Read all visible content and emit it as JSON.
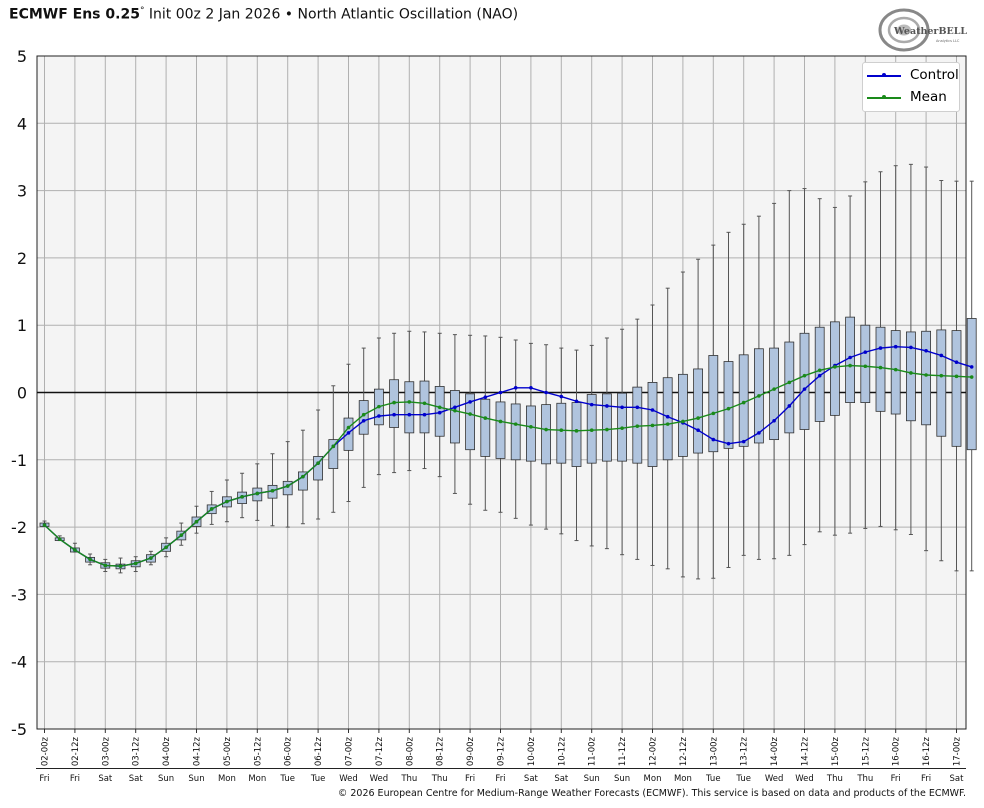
{
  "header": {
    "model": "ECMWF Ens 0.25",
    "degree": "°",
    "init": " Init 00z 2 Jan 2026",
    "bullet": " • ",
    "product": "North Atlantic Oscillation (NAO)"
  },
  "logo": {
    "text": "WeatherBELL",
    "sub": "Analytics LLC"
  },
  "copyright": "© 2026 European Centre for Medium-Range Weather Forecasts (ECMWF). This service is based on data and products of the ECMWF.",
  "colors": {
    "control": "#0000cc",
    "mean": "#1a8a1a",
    "box": "#b0c4de",
    "grid": "#b0b0b0",
    "plot_bg": "#f4f4f4"
  },
  "chart_data": {
    "type": "box",
    "title": "",
    "ylim": [
      -5,
      5
    ],
    "yticks": [
      5,
      4,
      3,
      2,
      1,
      0,
      -1,
      -2,
      -3,
      -4,
      -5
    ],
    "grid": true,
    "legend_position": "top-right",
    "x_tick_labels": [
      "02-00z",
      "02-12z",
      "03-00z",
      "03-12z",
      "04-00z",
      "04-12z",
      "05-00z",
      "05-12z",
      "06-00z",
      "06-12z",
      "07-00z",
      "07-12z",
      "08-00z",
      "08-12z",
      "09-00z",
      "09-12z",
      "10-00z",
      "10-12z",
      "11-00z",
      "11-12z",
      "12-00z",
      "12-12z",
      "13-00z",
      "13-12z",
      "14-00z",
      "14-12z",
      "15-00z",
      "15-12z",
      "16-00z",
      "16-12z",
      "17-00z"
    ],
    "x_day_labels": [
      "Fri",
      "Fri",
      "Sat",
      "Sat",
      "Sun",
      "Sun",
      "Mon",
      "Mon",
      "Tue",
      "Tue",
      "Wed",
      "Wed",
      "Thu",
      "Thu",
      "Fri",
      "Fri",
      "Sat",
      "Sat",
      "Sun",
      "Sun",
      "Mon",
      "Mon",
      "Tue",
      "Tue",
      "Wed",
      "Wed",
      "Thu",
      "Thu",
      "Fri",
      "Fri",
      "Sat"
    ],
    "step_hours": 6,
    "series": [
      {
        "name": "Control",
        "values": [
          -1.97,
          -2.18,
          -2.34,
          -2.48,
          -2.57,
          -2.58,
          -2.54,
          -2.46,
          -2.3,
          -2.12,
          -1.92,
          -1.73,
          -1.62,
          -1.55,
          -1.5,
          -1.46,
          -1.39,
          -1.25,
          -1.05,
          -0.8,
          -0.6,
          -0.42,
          -0.35,
          -0.33,
          -0.33,
          -0.33,
          -0.3,
          -0.22,
          -0.14,
          -0.07,
          0.0,
          0.07,
          0.07,
          0.0,
          -0.06,
          -0.13,
          -0.18,
          -0.2,
          -0.22,
          -0.22,
          -0.26,
          -0.36,
          -0.45,
          -0.56,
          -0.7,
          -0.76,
          -0.73,
          -0.6,
          -0.42,
          -0.2,
          0.05,
          0.25,
          0.4,
          0.52,
          0.6,
          0.66,
          0.68,
          0.67,
          0.62,
          0.55,
          0.45,
          0.38
        ]
      },
      {
        "name": "Mean",
        "values": [
          -1.97,
          -2.18,
          -2.34,
          -2.48,
          -2.57,
          -2.58,
          -2.54,
          -2.46,
          -2.3,
          -2.12,
          -1.92,
          -1.73,
          -1.62,
          -1.55,
          -1.5,
          -1.46,
          -1.39,
          -1.25,
          -1.05,
          -0.8,
          -0.52,
          -0.33,
          -0.21,
          -0.15,
          -0.14,
          -0.16,
          -0.22,
          -0.27,
          -0.32,
          -0.38,
          -0.43,
          -0.47,
          -0.51,
          -0.55,
          -0.56,
          -0.57,
          -0.56,
          -0.55,
          -0.53,
          -0.5,
          -0.49,
          -0.47,
          -0.43,
          -0.38,
          -0.31,
          -0.24,
          -0.15,
          -0.05,
          0.05,
          0.15,
          0.25,
          0.33,
          0.38,
          0.4,
          0.39,
          0.37,
          0.34,
          0.29,
          0.26,
          0.25,
          0.24,
          0.23
        ]
      }
    ],
    "boxes": {
      "q1": [
        -1.99,
        -2.2,
        -2.37,
        -2.52,
        -2.61,
        -2.62,
        -2.59,
        -2.52,
        -2.36,
        -2.19,
        -1.99,
        -1.8,
        -1.7,
        -1.65,
        -1.61,
        -1.57,
        -1.52,
        -1.45,
        -1.3,
        -1.13,
        -0.86,
        -0.62,
        -0.48,
        -0.52,
        -0.6,
        -0.6,
        -0.65,
        -0.75,
        -0.85,
        -0.95,
        -0.98,
        -1.0,
        -1.02,
        -1.06,
        -1.05,
        -1.1,
        -1.05,
        -1.02,
        -1.02,
        -1.05,
        -1.1,
        -1.0,
        -0.95,
        -0.9,
        -0.88,
        -0.83,
        -0.8,
        -0.75,
        -0.7,
        -0.6,
        -0.55,
        -0.43,
        -0.34,
        -0.15,
        -0.15,
        -0.28,
        -0.32,
        -0.42,
        -0.48,
        -0.65,
        -0.8,
        -0.85
      ],
      "q3": [
        -1.94,
        -2.16,
        -2.31,
        -2.45,
        -2.53,
        -2.55,
        -2.5,
        -2.41,
        -2.24,
        -2.06,
        -1.85,
        -1.67,
        -1.55,
        -1.48,
        -1.42,
        -1.38,
        -1.32,
        -1.18,
        -0.95,
        -0.7,
        -0.38,
        -0.12,
        0.05,
        0.19,
        0.16,
        0.17,
        0.09,
        0.03,
        -0.02,
        -0.1,
        -0.14,
        -0.17,
        -0.2,
        -0.18,
        -0.16,
        -0.15,
        -0.03,
        -0.02,
        -0.01,
        0.08,
        0.15,
        0.22,
        0.27,
        0.35,
        0.55,
        0.46,
        0.56,
        0.65,
        0.66,
        0.75,
        0.88,
        0.97,
        1.05,
        1.12,
        1.0,
        0.97,
        0.92,
        0.9,
        0.91,
        0.93,
        0.92,
        1.1
      ],
      "min": [
        -1.99,
        -2.2,
        -2.37,
        -2.56,
        -2.66,
        -2.68,
        -2.66,
        -2.56,
        -2.44,
        -2.27,
        -2.09,
        -1.96,
        -1.92,
        -1.86,
        -1.9,
        -1.98,
        -2.0,
        -1.95,
        -1.88,
        -1.78,
        -1.62,
        -1.41,
        -1.22,
        -1.19,
        -1.16,
        -1.13,
        -1.25,
        -1.5,
        -1.66,
        -1.75,
        -1.78,
        -1.87,
        -1.97,
        -2.03,
        -2.1,
        -2.2,
        -2.28,
        -2.32,
        -2.41,
        -2.48,
        -2.57,
        -2.62,
        -2.74,
        -2.77,
        -2.76,
        -2.6,
        -2.42,
        -2.48,
        -2.47,
        -2.42,
        -2.26,
        -2.07,
        -2.12,
        -2.09,
        -2.02,
        -1.99,
        -2.04,
        -2.11,
        -2.35,
        -2.5,
        -2.65,
        -2.65
      ],
      "max": [
        -1.91,
        -2.13,
        -2.24,
        -2.4,
        -2.48,
        -2.46,
        -2.44,
        -2.36,
        -2.16,
        -1.94,
        -1.69,
        -1.47,
        -1.3,
        -1.2,
        -1.06,
        -0.91,
        -0.73,
        -0.56,
        -0.26,
        0.1,
        0.42,
        0.66,
        0.81,
        0.88,
        0.91,
        0.9,
        0.88,
        0.86,
        0.85,
        0.84,
        0.82,
        0.78,
        0.73,
        0.71,
        0.66,
        0.63,
        0.7,
        0.81,
        0.94,
        1.09,
        1.3,
        1.55,
        1.79,
        1.98,
        2.19,
        2.38,
        2.5,
        2.62,
        2.81,
        3.0,
        3.03,
        2.88,
        2.75,
        2.92,
        3.13,
        3.28,
        3.37,
        3.39,
        3.35,
        3.15,
        3.14,
        3.14
      ]
    }
  }
}
